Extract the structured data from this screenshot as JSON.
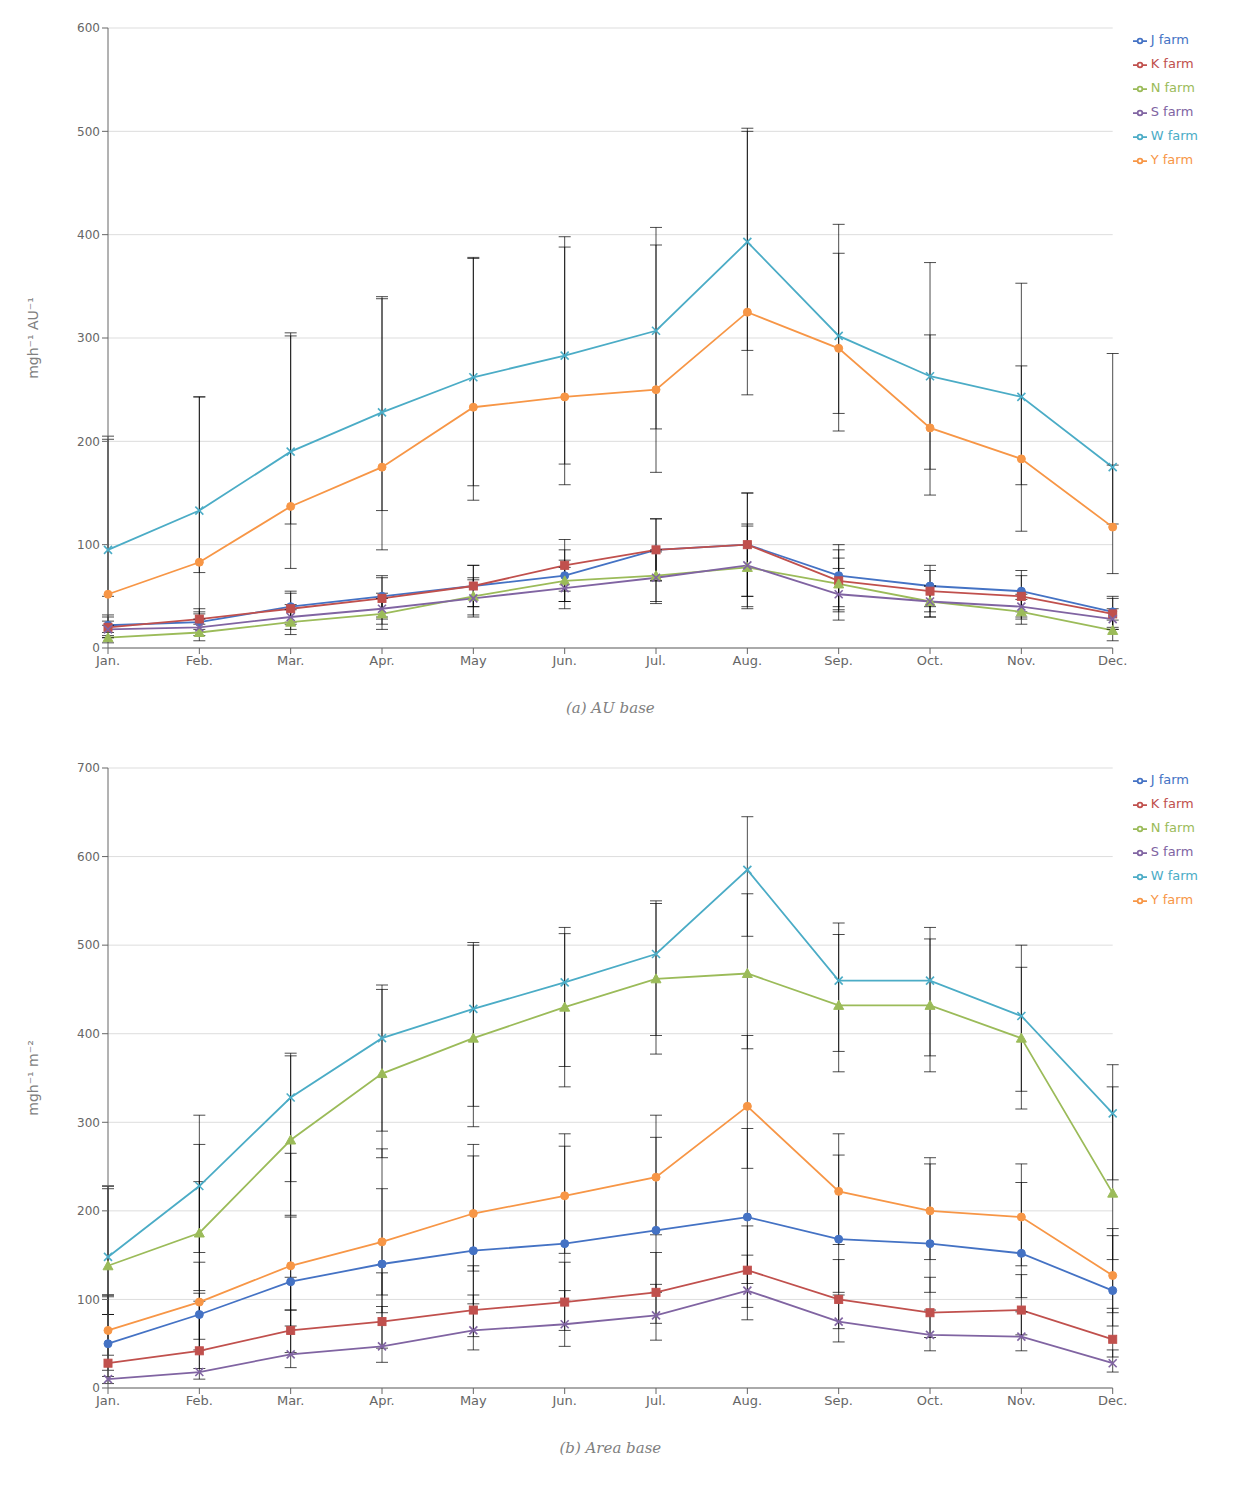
{
  "chart_data": [
    {
      "type": "line",
      "xlabel": "(a)  AU base",
      "ylabel": "mgh⁻¹ AU⁻¹",
      "categories": [
        "Jan.",
        "Feb.",
        "Mar.",
        "Apr.",
        "May",
        "Jun.",
        "Jul.",
        "Aug.",
        "Sep.",
        "Oct.",
        "Nov.",
        "Dec."
      ],
      "ylim": [
        0,
        600
      ],
      "yticks": [
        0,
        100,
        200,
        300,
        400,
        500,
        600
      ],
      "grid": "y",
      "legend": "right",
      "series": [
        {
          "name": "J farm",
          "color": "#4472C4",
          "marker": "circle",
          "values": [
            22,
            25,
            40,
            50,
            60,
            70,
            95,
            100,
            70,
            60,
            55,
            35
          ],
          "error_low": [
            10,
            10,
            15,
            20,
            20,
            25,
            30,
            50,
            30,
            20,
            20,
            15
          ],
          "error_high": [
            10,
            10,
            15,
            20,
            20,
            25,
            30,
            50,
            30,
            20,
            20,
            15
          ]
        },
        {
          "name": "K farm",
          "color": "#C0504D",
          "marker": "square",
          "values": [
            20,
            28,
            38,
            48,
            60,
            80,
            95,
            100,
            65,
            55,
            50,
            33
          ],
          "error_low": [
            10,
            10,
            15,
            20,
            20,
            25,
            30,
            50,
            30,
            20,
            20,
            15
          ],
          "error_high": [
            10,
            10,
            15,
            20,
            20,
            25,
            30,
            50,
            30,
            20,
            20,
            15
          ]
        },
        {
          "name": "N farm",
          "color": "#9BBB59",
          "marker": "triangle",
          "values": [
            10,
            15,
            25,
            33,
            50,
            65,
            70,
            78,
            62,
            45,
            35,
            17
          ],
          "error_low": [
            5,
            8,
            12,
            15,
            18,
            20,
            25,
            40,
            25,
            15,
            12,
            10
          ],
          "error_high": [
            5,
            8,
            12,
            15,
            18,
            20,
            25,
            40,
            25,
            15,
            12,
            10
          ]
        },
        {
          "name": "S farm",
          "color": "#8064A2",
          "marker": "x",
          "values": [
            18,
            20,
            30,
            38,
            48,
            58,
            68,
            80,
            52,
            45,
            40,
            28
          ],
          "error_low": [
            8,
            8,
            12,
            15,
            18,
            20,
            25,
            40,
            25,
            15,
            12,
            10
          ],
          "error_high": [
            8,
            8,
            12,
            15,
            18,
            20,
            25,
            40,
            25,
            15,
            12,
            10
          ]
        },
        {
          "name": "W farm",
          "color": "#4BACC6",
          "marker": "x",
          "values": [
            95,
            133,
            190,
            228,
            262,
            283,
            307,
            393,
            302,
            263,
            243,
            175
          ],
          "error_low": [
            45,
            60,
            70,
            95,
            105,
            105,
            95,
            105,
            75,
            90,
            85,
            55
          ],
          "error_high": [
            110,
            110,
            115,
            110,
            115,
            115,
            100,
            110,
            80,
            110,
            110,
            110
          ]
        },
        {
          "name": "Y farm",
          "color": "#F79646",
          "marker": "circle",
          "values": [
            52,
            83,
            137,
            175,
            233,
            243,
            250,
            325,
            290,
            213,
            183,
            117
          ],
          "error_low": [
            30,
            50,
            60,
            80,
            90,
            85,
            80,
            80,
            80,
            65,
            70,
            45
          ],
          "error_high": [
            150,
            160,
            165,
            165,
            145,
            145,
            140,
            175,
            120,
            90,
            90,
            60
          ]
        }
      ]
    },
    {
      "type": "line",
      "xlabel": "(b)  Area base",
      "ylabel": "mgh⁻¹ m⁻²",
      "categories": [
        "Jan.",
        "Feb.",
        "Mar.",
        "Apr.",
        "May",
        "Jun.",
        "Jul.",
        "Aug.",
        "Sep.",
        "Oct.",
        "Nov.",
        "Dec."
      ],
      "ylim": [
        0,
        700
      ],
      "yticks": [
        0,
        100,
        200,
        300,
        400,
        500,
        600,
        700
      ],
      "grid": "y",
      "legend": "right",
      "series": [
        {
          "name": "J farm",
          "color": "#4472C4",
          "marker": "circle",
          "values": [
            50,
            83,
            120,
            140,
            155,
            163,
            178,
            193,
            168,
            163,
            152,
            110
          ],
          "error_low": [
            30,
            40,
            50,
            55,
            60,
            65,
            70,
            75,
            60,
            55,
            50,
            40
          ],
          "error_high": [
            175,
            150,
            145,
            130,
            120,
            110,
            105,
            100,
            95,
            90,
            80,
            70
          ]
        },
        {
          "name": "K farm",
          "color": "#C0504D",
          "marker": "square",
          "values": [
            28,
            42,
            65,
            75,
            88,
            97,
            108,
            133,
            100,
            85,
            88,
            55
          ],
          "error_low": [
            15,
            20,
            25,
            30,
            30,
            32,
            35,
            42,
            33,
            28,
            28,
            20
          ],
          "error_high": [
            75,
            65,
            60,
            55,
            50,
            45,
            45,
            50,
            45,
            40,
            40,
            35
          ]
        },
        {
          "name": "N farm",
          "color": "#9BBB59",
          "marker": "triangle",
          "values": [
            138,
            175,
            280,
            355,
            395,
            430,
            462,
            468,
            432,
            432,
            395,
            220
          ],
          "error_low": [
            55,
            65,
            85,
            95,
            100,
            90,
            85,
            85,
            75,
            75,
            80,
            75
          ],
          "error_high": [
            90,
            100,
            95,
            100,
            105,
            90,
            85,
            90,
            80,
            75,
            80,
            120
          ]
        },
        {
          "name": "S farm",
          "color": "#8064A2",
          "marker": "x",
          "values": [
            10,
            18,
            38,
            47,
            65,
            72,
            82,
            110,
            75,
            60,
            58,
            28
          ],
          "error_low": [
            5,
            8,
            15,
            18,
            22,
            25,
            28,
            33,
            23,
            18,
            16,
            10
          ],
          "error_high": [
            95,
            80,
            50,
            45,
            40,
            38,
            35,
            40,
            30,
            28,
            28,
            15
          ]
        },
        {
          "name": "W farm",
          "color": "#4BACC6",
          "marker": "x",
          "values": [
            148,
            228,
            328,
            395,
            428,
            458,
            490,
            585,
            460,
            460,
            420,
            310
          ],
          "error_low": [
            65,
            75,
            95,
            105,
            110,
            95,
            92,
            75,
            80,
            85,
            85,
            75
          ],
          "error_high": [
            80,
            80,
            50,
            55,
            75,
            55,
            60,
            60,
            65,
            60,
            80,
            55
          ]
        },
        {
          "name": "Y farm",
          "color": "#F79646",
          "marker": "circle",
          "values": [
            65,
            97,
            138,
            165,
            197,
            217,
            238,
            318,
            222,
            200,
            193,
            127
          ],
          "error_low": [
            28,
            42,
            50,
            60,
            65,
            65,
            65,
            70,
            60,
            55,
            55,
            42
          ],
          "error_high": [
            40,
            45,
            55,
            60,
            65,
            70,
            70,
            80,
            65,
            60,
            60,
            45
          ]
        }
      ]
    }
  ]
}
